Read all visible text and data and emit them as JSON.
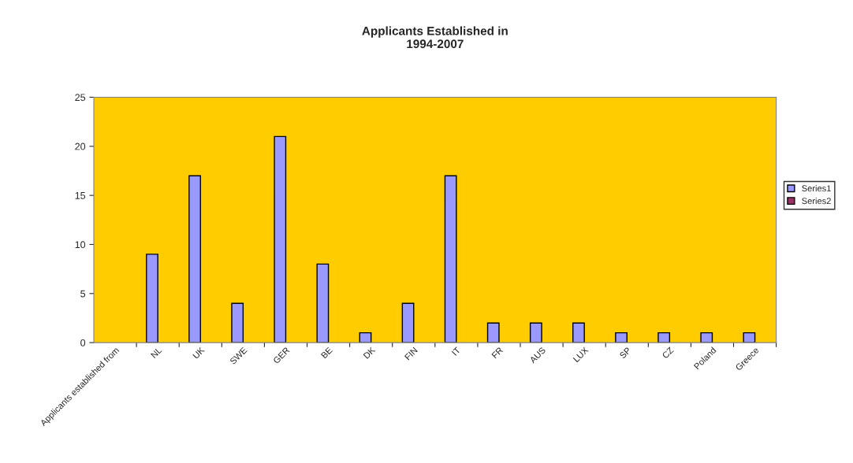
{
  "chart_data": {
    "type": "bar",
    "title": "Applicants Established in\n1994-2007",
    "categories": [
      "Applicants established from",
      "NL",
      "UK",
      "SWE",
      "GER",
      "BE",
      "DK",
      "FIN",
      "IT",
      "FR",
      "AUS",
      "LUX",
      "SP",
      "CZ",
      "Poland",
      "Greece"
    ],
    "series": [
      {
        "name": "Series1",
        "color": "#9999ff",
        "values": [
          null,
          9,
          17,
          4,
          21,
          8,
          1,
          4,
          17,
          2,
          2,
          2,
          1,
          1,
          1,
          1
        ]
      },
      {
        "name": "Series2",
        "color": "#993366",
        "values": [
          null,
          null,
          null,
          null,
          null,
          null,
          null,
          null,
          null,
          null,
          null,
          null,
          null,
          null,
          null,
          null
        ]
      }
    ],
    "ylim": [
      0,
      25
    ],
    "yticks": [
      0,
      5,
      10,
      15,
      20,
      25
    ],
    "grid": false,
    "legend": "right"
  }
}
